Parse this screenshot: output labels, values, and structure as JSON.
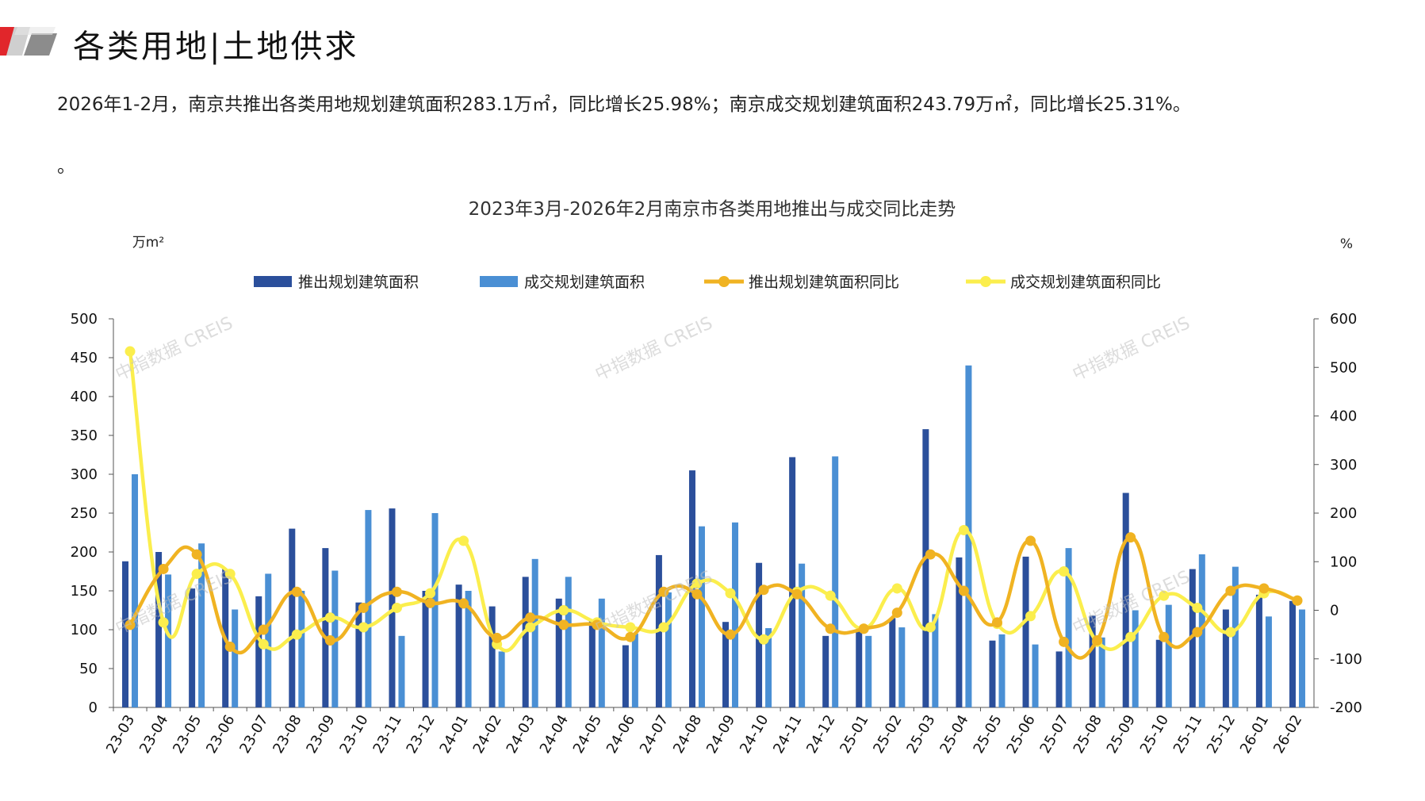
{
  "page": {
    "title": "各类用地|土地供求",
    "summary": "2026年1-2月，南京共推出各类用地规划建筑面积283.1万㎡，同比增长25.98%；南京成交规划建筑面积243.79万㎡，同比增长25.31%。",
    "summary_tail": "。",
    "watermark": "中指数据 CREIS"
  },
  "colors": {
    "bar_supply": "#2b4f9b",
    "bar_deal": "#4a8fd4",
    "line_supply": "#f0b322",
    "line_deal": "#fbee4d",
    "accent_red": "#e1262b"
  },
  "chart_data": {
    "type": "bar+line",
    "title": "2023年3月-2026年2月南京市各类用地推出与成交同比走势",
    "ylabel_left": "万m²",
    "ylabel_right": "%",
    "ylim_left": [
      0,
      500
    ],
    "yticks_left": [
      0,
      50,
      100,
      150,
      200,
      250,
      300,
      350,
      400,
      450,
      500
    ],
    "ylim_right": [
      -200,
      600
    ],
    "yticks_right": [
      -200,
      -100,
      0,
      100,
      200,
      300,
      400,
      500,
      600
    ],
    "legend_position": "top",
    "grid": false,
    "categories": [
      "23-03",
      "23-04",
      "23-05",
      "23-06",
      "23-07",
      "23-08",
      "23-09",
      "23-10",
      "23-11",
      "23-12",
      "24-01",
      "24-02",
      "24-03",
      "24-04",
      "24-05",
      "24-06",
      "24-07",
      "24-08",
      "24-09",
      "24-10",
      "24-11",
      "24-12",
      "25-01",
      "25-02",
      "25-03",
      "25-04",
      "25-05",
      "25-06",
      "25-07",
      "25-08",
      "25-09",
      "25-10",
      "25-11",
      "25-12",
      "26-01",
      "26-02"
    ],
    "series": [
      {
        "name": "推出规划建筑面积",
        "type": "bar",
        "axis": "left",
        "values": [
          188,
          200,
          153,
          178,
          143,
          230,
          205,
          135,
          256,
          150,
          158,
          130,
          168,
          140,
          113,
          80,
          196,
          305,
          110,
          186,
          322,
          92,
          100,
          115,
          358,
          193,
          86,
          194,
          72,
          118,
          276,
          87,
          178,
          126,
          145,
          137
        ]
      },
      {
        "name": "成交规划建筑面积",
        "type": "bar",
        "axis": "left",
        "values": [
          300,
          171,
          211,
          126,
          172,
          150,
          176,
          254,
          92,
          250,
          150,
          72,
          191,
          168,
          140,
          95,
          148,
          233,
          238,
          102,
          185,
          323,
          92,
          103,
          120,
          440,
          94,
          81,
          205,
          90,
          125,
          132,
          197,
          181,
          117,
          126
        ]
      },
      {
        "name": "推出规划建筑面积同比",
        "type": "line",
        "axis": "right",
        "values": [
          -30,
          85,
          115,
          -75,
          -40,
          38,
          -62,
          5,
          38,
          15,
          14,
          -57,
          -15,
          -30,
          -30,
          -55,
          38,
          33,
          -50,
          42,
          33,
          -38,
          -38,
          -5,
          115,
          40,
          -25,
          143,
          -65,
          -62,
          150,
          -55,
          -45,
          40,
          45,
          20
        ]
      },
      {
        "name": "成交规划建筑面积同比",
        "type": "line",
        "axis": "right",
        "values": [
          533,
          -25,
          75,
          75,
          -70,
          -50,
          -15,
          -35,
          5,
          35,
          143,
          -70,
          -35,
          0,
          -25,
          -35,
          -35,
          55,
          35,
          -60,
          38,
          30,
          -38,
          45,
          -35,
          165,
          -28,
          -12,
          80,
          -65,
          -55,
          30,
          5,
          -45,
          35,
          20
        ]
      }
    ]
  }
}
